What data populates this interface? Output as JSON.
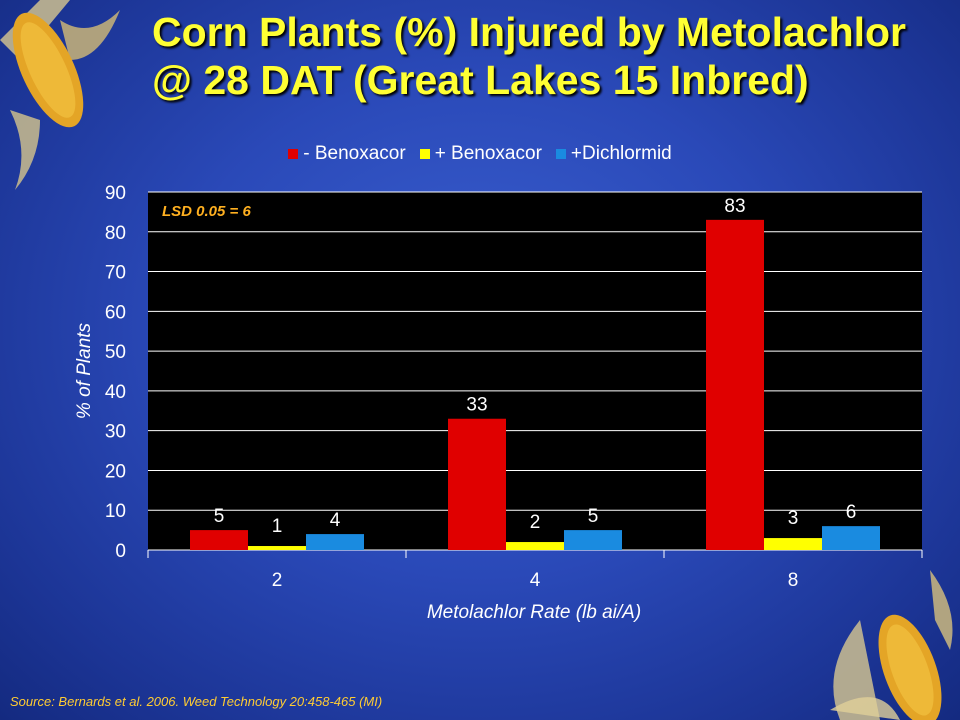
{
  "slide": {
    "title_line1": "Corn Plants (%) Injured by Metolachlor",
    "title_line2": "@ 28 DAT (Great Lakes 15 Inbred)",
    "source": "Source:  Bernards et al. 2006.  Weed Technology 20:458-465 (MI)"
  },
  "chart_data": {
    "type": "bar",
    "categories": [
      "2",
      "4",
      "8"
    ],
    "series": [
      {
        "name": "- Benoxacor",
        "color": "#e00000",
        "values": [
          5,
          33,
          83
        ]
      },
      {
        "name": "+ Benoxacor",
        "color": "#ffff00",
        "values": [
          1,
          2,
          3
        ]
      },
      {
        "name": "+Dichlormid",
        "color": "#1a8be0",
        "values": [
          4,
          5,
          6
        ]
      }
    ],
    "xlabel": "Metolachlor Rate (lb ai/A)",
    "ylabel": "% of Plants",
    "ylim": [
      0,
      90
    ],
    "yticks": [
      0,
      10,
      20,
      30,
      40,
      50,
      60,
      70,
      80,
      90
    ],
    "annotation": "LSD 0.05 = 6",
    "grid": true,
    "legend_position": "top"
  }
}
